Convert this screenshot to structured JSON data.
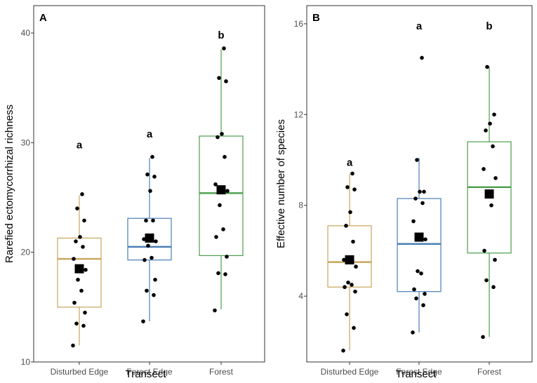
{
  "chart_data": [
    {
      "type": "box",
      "panel_label": "A",
      "xlabel": "Transect",
      "ylabel": "Rarefied ectomycorrhizal richness",
      "categories": [
        "Disturbed Edge",
        "Forest Edge",
        "Forest"
      ],
      "ylim": [
        10,
        42.5
      ],
      "yticks": [
        10,
        20,
        30,
        40
      ],
      "significance_letters": [
        "a",
        "a",
        "b"
      ],
      "letter_y": [
        29.8,
        30.8,
        39.8
      ],
      "boxes": [
        {
          "category": "Disturbed Edge",
          "color": "#c9a55a",
          "whisker_low": 11.5,
          "q1": 15.0,
          "median": 19.4,
          "q3": 21.3,
          "whisker_high": 25.2,
          "mean": 18.5,
          "points": [
            11.5,
            13.3,
            13.5,
            14.5,
            15.4,
            16.5,
            17.5,
            18.4,
            19.4,
            20.5,
            21.0,
            21.4,
            22.9,
            24.0,
            25.3
          ]
        },
        {
          "category": "Forest Edge",
          "color": "#4a7fb5",
          "whisker_low": 13.7,
          "q1": 19.3,
          "median": 20.5,
          "q3": 23.1,
          "whisker_high": 28.6,
          "mean": 21.3,
          "points": [
            13.7,
            16.1,
            16.5,
            17.5,
            19.3,
            19.5,
            20.6,
            21.0,
            21.2,
            22.9,
            22.9,
            25.6,
            26.9,
            27.1,
            28.7
          ]
        },
        {
          "category": "Forest",
          "color": "#4a9e4a",
          "whisker_low": 14.8,
          "q1": 19.7,
          "median": 25.4,
          "q3": 30.6,
          "whisker_high": 38.5,
          "mean": 25.7,
          "points": [
            14.7,
            18.0,
            18.1,
            19.6,
            21.4,
            22.1,
            24.3,
            25.6,
            26.2,
            28.7,
            30.5,
            30.8,
            35.6,
            35.9,
            38.6
          ]
        }
      ]
    },
    {
      "type": "box",
      "panel_label": "B",
      "xlabel": "Transect",
      "ylabel": "Effective number of species",
      "categories": [
        "Disturbed Edge",
        "Forest Edge",
        "Forest"
      ],
      "ylim": [
        1.1,
        16.8
      ],
      "yticks": [
        4,
        8,
        12,
        16
      ],
      "significance_letters": [
        "a",
        "a",
        "b"
      ],
      "letter_y": [
        9.9,
        15.9,
        15.9
      ],
      "boxes": [
        {
          "category": "Disturbed Edge",
          "color": "#c9a55a",
          "whisker_low": 1.6,
          "q1": 4.4,
          "median": 5.5,
          "q3": 7.1,
          "whisker_high": 9.4,
          "mean": 5.6,
          "points": [
            1.6,
            2.6,
            3.2,
            4.2,
            4.4,
            4.5,
            4.6,
            5.3,
            5.6,
            6.4,
            7.1,
            7.7,
            8.7,
            8.8,
            9.4
          ]
        },
        {
          "category": "Forest Edge",
          "color": "#4a7fb5",
          "whisker_low": 2.4,
          "q1": 4.2,
          "median": 6.3,
          "q3": 8.3,
          "whisker_high": 10.1,
          "mean": 6.6,
          "points": [
            2.4,
            3.6,
            3.9,
            4.1,
            4.3,
            5.0,
            5.1,
            6.5,
            7.3,
            8.1,
            8.3,
            8.6,
            8.6,
            10.0,
            14.5
          ]
        },
        {
          "category": "Forest",
          "color": "#4a9e4a",
          "whisker_low": 2.2,
          "q1": 5.9,
          "median": 8.8,
          "q3": 10.8,
          "whisker_high": 14.1,
          "mean": 8.5,
          "points": [
            2.2,
            4.4,
            4.7,
            5.6,
            6.0,
            8.0,
            8.4,
            9.2,
            9.6,
            10.6,
            11.3,
            11.6,
            12.0,
            14.1
          ]
        }
      ]
    }
  ]
}
